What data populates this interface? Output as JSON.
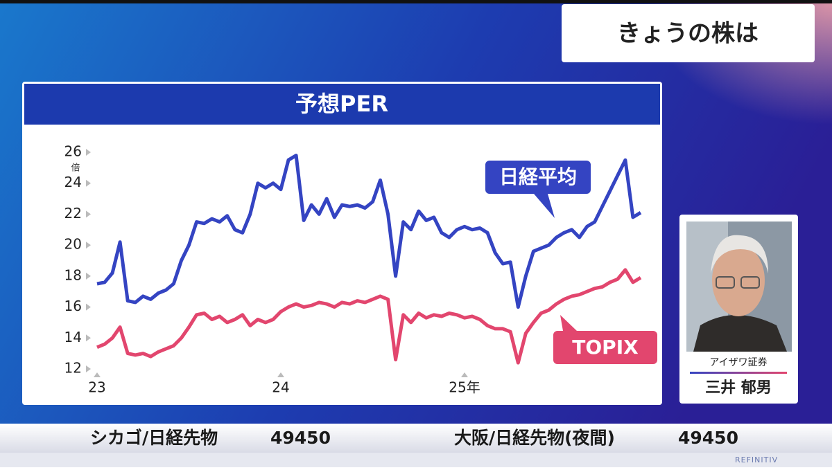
{
  "header": {
    "title": "きょうの株は"
  },
  "chart_data": {
    "type": "line",
    "title": "予想PER",
    "y_unit": "倍",
    "categories": [
      "23",
      null,
      null,
      null,
      null,
      null,
      null,
      null,
      null,
      null,
      null,
      null,
      null,
      null,
      null,
      null,
      null,
      null,
      null,
      null,
      null,
      null,
      null,
      null,
      "24",
      null,
      null,
      null,
      null,
      null,
      null,
      null,
      null,
      null,
      null,
      null,
      null,
      null,
      null,
      null,
      null,
      null,
      null,
      null,
      null,
      null,
      null,
      null,
      "25年",
      null,
      null,
      null,
      null,
      null,
      null,
      null,
      null,
      null,
      null,
      null,
      null,
      null,
      null,
      null,
      null,
      null,
      null,
      null,
      null,
      null,
      null,
      null
    ],
    "series": [
      {
        "name": "日経平均",
        "color": "#3444c2",
        "values": [
          17.5,
          17.6,
          18.2,
          20.2,
          16.4,
          16.3,
          16.7,
          16.5,
          16.9,
          17.1,
          17.5,
          19.0,
          20.0,
          21.5,
          21.4,
          21.7,
          21.5,
          21.9,
          21.0,
          20.8,
          22.0,
          24.0,
          23.7,
          24.0,
          23.6,
          25.5,
          25.8,
          21.6,
          22.6,
          22.0,
          23.0,
          21.8,
          22.6,
          22.5,
          22.6,
          22.4,
          22.8,
          24.2,
          22.0,
          18.0,
          21.5,
          21.0,
          22.2,
          21.6,
          21.8,
          20.8,
          20.5,
          21.0,
          21.2,
          21.0,
          21.1,
          20.8,
          19.5,
          18.8,
          18.9,
          16.0,
          18.0,
          19.6,
          19.8,
          20.0,
          20.5,
          20.8,
          21.0,
          20.5,
          21.2,
          21.5,
          22.5,
          23.5,
          24.5,
          25.5,
          21.8,
          22.1
        ]
      },
      {
        "name": "TOPIX",
        "color": "#e2466e",
        "values": [
          13.4,
          13.6,
          14.0,
          14.7,
          13.0,
          12.9,
          13.0,
          12.8,
          13.1,
          13.3,
          13.5,
          14.0,
          14.7,
          15.5,
          15.6,
          15.2,
          15.4,
          15.0,
          15.2,
          15.5,
          14.8,
          15.2,
          15.0,
          15.2,
          15.7,
          16.0,
          16.2,
          16.0,
          16.1,
          16.3,
          16.2,
          16.0,
          16.3,
          16.2,
          16.4,
          16.3,
          16.5,
          16.7,
          16.5,
          12.6,
          15.5,
          15.0,
          15.6,
          15.3,
          15.5,
          15.4,
          15.6,
          15.5,
          15.3,
          15.4,
          15.2,
          14.8,
          14.6,
          14.6,
          14.4,
          12.4,
          14.3,
          15.0,
          15.6,
          15.8,
          16.2,
          16.5,
          16.7,
          16.8,
          17.0,
          17.2,
          17.3,
          17.6,
          17.8,
          18.4,
          17.6,
          17.9
        ]
      }
    ],
    "ylim": [
      12,
      26
    ],
    "yticks": [
      12,
      14,
      16,
      18,
      20,
      22,
      24,
      26
    ],
    "grid": false
  },
  "guest": {
    "company": "アイザワ証券",
    "name": "三井 郁男"
  },
  "ticker": [
    {
      "label": "シカゴ/日経先物",
      "value": 49450
    },
    {
      "label": "大阪/日経先物(夜間)",
      "value": 49450
    }
  ],
  "footer": {
    "brand": "REFINITIV"
  }
}
